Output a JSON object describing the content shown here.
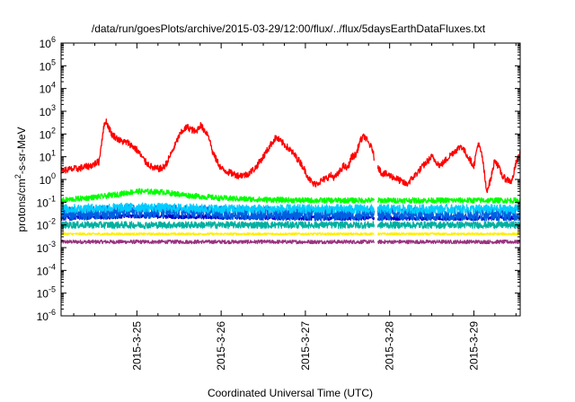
{
  "chart_data": {
    "type": "line",
    "title": "/data/run/goesPlots/archive/2015-03-29/12:00/flux/../flux/5daysEarthDataFluxes.txt",
    "xlabel": "Coordinated Universal Time (UTC)",
    "ylabel": {
      "base": "protons/cm",
      "sup": "2",
      "rest": "-s-sr-MeV"
    },
    "yscale": "log",
    "ylim": [
      1e-06,
      1000000.0
    ],
    "y_ticks": [
      {
        "exp": "-6"
      },
      {
        "exp": "-5"
      },
      {
        "exp": "-4"
      },
      {
        "exp": "-3"
      },
      {
        "exp": "-2"
      },
      {
        "exp": "-1"
      },
      {
        "exp": "0"
      },
      {
        "exp": "1"
      },
      {
        "exp": "2"
      },
      {
        "exp": "3"
      },
      {
        "exp": "4"
      },
      {
        "exp": "5"
      },
      {
        "exp": "6"
      }
    ],
    "y_tick_base": "10",
    "xlim_days": [
      24.1,
      29.55
    ],
    "x_ticks": [
      {
        "day": 25,
        "label": "2015-3-25"
      },
      {
        "day": 26,
        "label": "2015-3-26"
      },
      {
        "day": 27,
        "label": "2015-3-27"
      },
      {
        "day": 28,
        "label": "2015-3-28"
      },
      {
        "day": 29,
        "label": "2015-3-29"
      }
    ],
    "data_gap_days": [
      27.82,
      27.86
    ],
    "grid": false,
    "legend": "none",
    "series": [
      {
        "color": "#ff0000",
        "noise": 0.15,
        "points": [
          [
            24.1,
            2.5
          ],
          [
            24.3,
            3
          ],
          [
            24.45,
            4
          ],
          [
            24.55,
            6
          ],
          [
            24.6,
            150
          ],
          [
            24.63,
            400
          ],
          [
            24.7,
            100
          ],
          [
            24.8,
            50
          ],
          [
            24.9,
            40
          ],
          [
            25.0,
            20
          ],
          [
            25.1,
            6
          ],
          [
            25.2,
            3
          ],
          [
            25.3,
            3
          ],
          [
            25.35,
            5
          ],
          [
            25.45,
            30
          ],
          [
            25.5,
            80
          ],
          [
            25.55,
            150
          ],
          [
            25.6,
            200
          ],
          [
            25.7,
            120
          ],
          [
            25.75,
            250
          ],
          [
            25.85,
            90
          ],
          [
            25.9,
            15
          ],
          [
            26.0,
            3
          ],
          [
            26.1,
            2
          ],
          [
            26.2,
            1.5
          ],
          [
            26.3,
            1.6
          ],
          [
            26.4,
            3
          ],
          [
            26.5,
            10
          ],
          [
            26.6,
            40
          ],
          [
            26.65,
            70
          ],
          [
            26.75,
            35
          ],
          [
            26.85,
            15
          ],
          [
            26.95,
            5
          ],
          [
            27.05,
            1
          ],
          [
            27.1,
            0.6
          ],
          [
            27.2,
            0.9
          ],
          [
            27.3,
            1.5
          ],
          [
            27.35,
            1.2
          ],
          [
            27.4,
            2
          ],
          [
            27.45,
            4
          ],
          [
            27.5,
            3
          ],
          [
            27.55,
            10
          ],
          [
            27.6,
            12
          ],
          [
            27.65,
            50
          ],
          [
            27.7,
            80
          ],
          [
            27.8,
            20
          ],
          [
            27.82,
            6
          ],
          [
            27.86,
            4
          ],
          [
            27.9,
            2
          ],
          [
            28.0,
            1.5
          ],
          [
            28.1,
            1
          ],
          [
            28.2,
            0.6
          ],
          [
            28.3,
            1.5
          ],
          [
            28.4,
            4
          ],
          [
            28.5,
            10
          ],
          [
            28.6,
            4
          ],
          [
            28.75,
            15
          ],
          [
            28.85,
            30
          ],
          [
            28.9,
            15
          ],
          [
            29.0,
            4
          ],
          [
            29.05,
            40
          ],
          [
            29.1,
            10
          ],
          [
            29.15,
            0.3
          ],
          [
            29.2,
            1
          ],
          [
            29.25,
            8
          ],
          [
            29.3,
            3
          ],
          [
            29.35,
            1.2
          ],
          [
            29.45,
            0.8
          ],
          [
            29.5,
            5
          ],
          [
            29.55,
            15
          ]
        ]
      },
      {
        "color": "#00ff00",
        "noise": 0.12,
        "points": [
          [
            24.1,
            0.12
          ],
          [
            24.6,
            0.18
          ],
          [
            25.0,
            0.3
          ],
          [
            25.3,
            0.28
          ],
          [
            25.6,
            0.2
          ],
          [
            26.0,
            0.15
          ],
          [
            26.5,
            0.13
          ],
          [
            27.0,
            0.12
          ],
          [
            27.82,
            0.12
          ],
          [
            27.86,
            0.12
          ],
          [
            28.5,
            0.12
          ],
          [
            29.0,
            0.12
          ],
          [
            29.55,
            0.12
          ]
        ]
      },
      {
        "color": "#00ccff",
        "noise": 0.2,
        "points": [
          [
            24.1,
            0.05
          ],
          [
            25.0,
            0.06
          ],
          [
            26.0,
            0.05
          ],
          [
            27.0,
            0.05
          ],
          [
            27.82,
            0.05
          ],
          [
            27.86,
            0.05
          ],
          [
            29.55,
            0.05
          ]
        ]
      },
      {
        "color": "#0060e0",
        "noise": 0.3,
        "points": [
          [
            24.1,
            0.03
          ],
          [
            25.0,
            0.04
          ],
          [
            26.0,
            0.035
          ],
          [
            27.0,
            0.03
          ],
          [
            27.82,
            0.03
          ],
          [
            27.86,
            0.03
          ],
          [
            29.55,
            0.03
          ]
        ]
      },
      {
        "color": "#00b0a0",
        "noise": 0.15,
        "points": [
          [
            24.1,
            0.01
          ],
          [
            25.0,
            0.01
          ],
          [
            26.0,
            0.01
          ],
          [
            27.0,
            0.01
          ],
          [
            27.82,
            0.01
          ],
          [
            27.86,
            0.01
          ],
          [
            29.55,
            0.01
          ]
        ]
      },
      {
        "color": "#0000cc",
        "noise": 0.1,
        "points": [
          [
            24.1,
            0.02
          ],
          [
            25.0,
            0.025
          ],
          [
            26.0,
            0.022
          ],
          [
            27.0,
            0.02
          ],
          [
            27.82,
            0.02
          ],
          [
            27.86,
            0.02
          ],
          [
            29.55,
            0.02
          ]
        ]
      },
      {
        "color": "#ffee00",
        "noise": 0.05,
        "points": [
          [
            24.1,
            0.004
          ],
          [
            25.0,
            0.004
          ],
          [
            26.0,
            0.004
          ],
          [
            27.0,
            0.004
          ],
          [
            27.82,
            0.004
          ],
          [
            27.86,
            0.004
          ],
          [
            29.55,
            0.004
          ]
        ]
      },
      {
        "color": "#993380",
        "noise": 0.08,
        "points": [
          [
            24.1,
            0.0018
          ],
          [
            25.0,
            0.0018
          ],
          [
            26.0,
            0.0018
          ],
          [
            27.0,
            0.0018
          ],
          [
            27.82,
            0.0018
          ],
          [
            27.86,
            0.0018
          ],
          [
            29.55,
            0.0018
          ]
        ]
      }
    ]
  }
}
